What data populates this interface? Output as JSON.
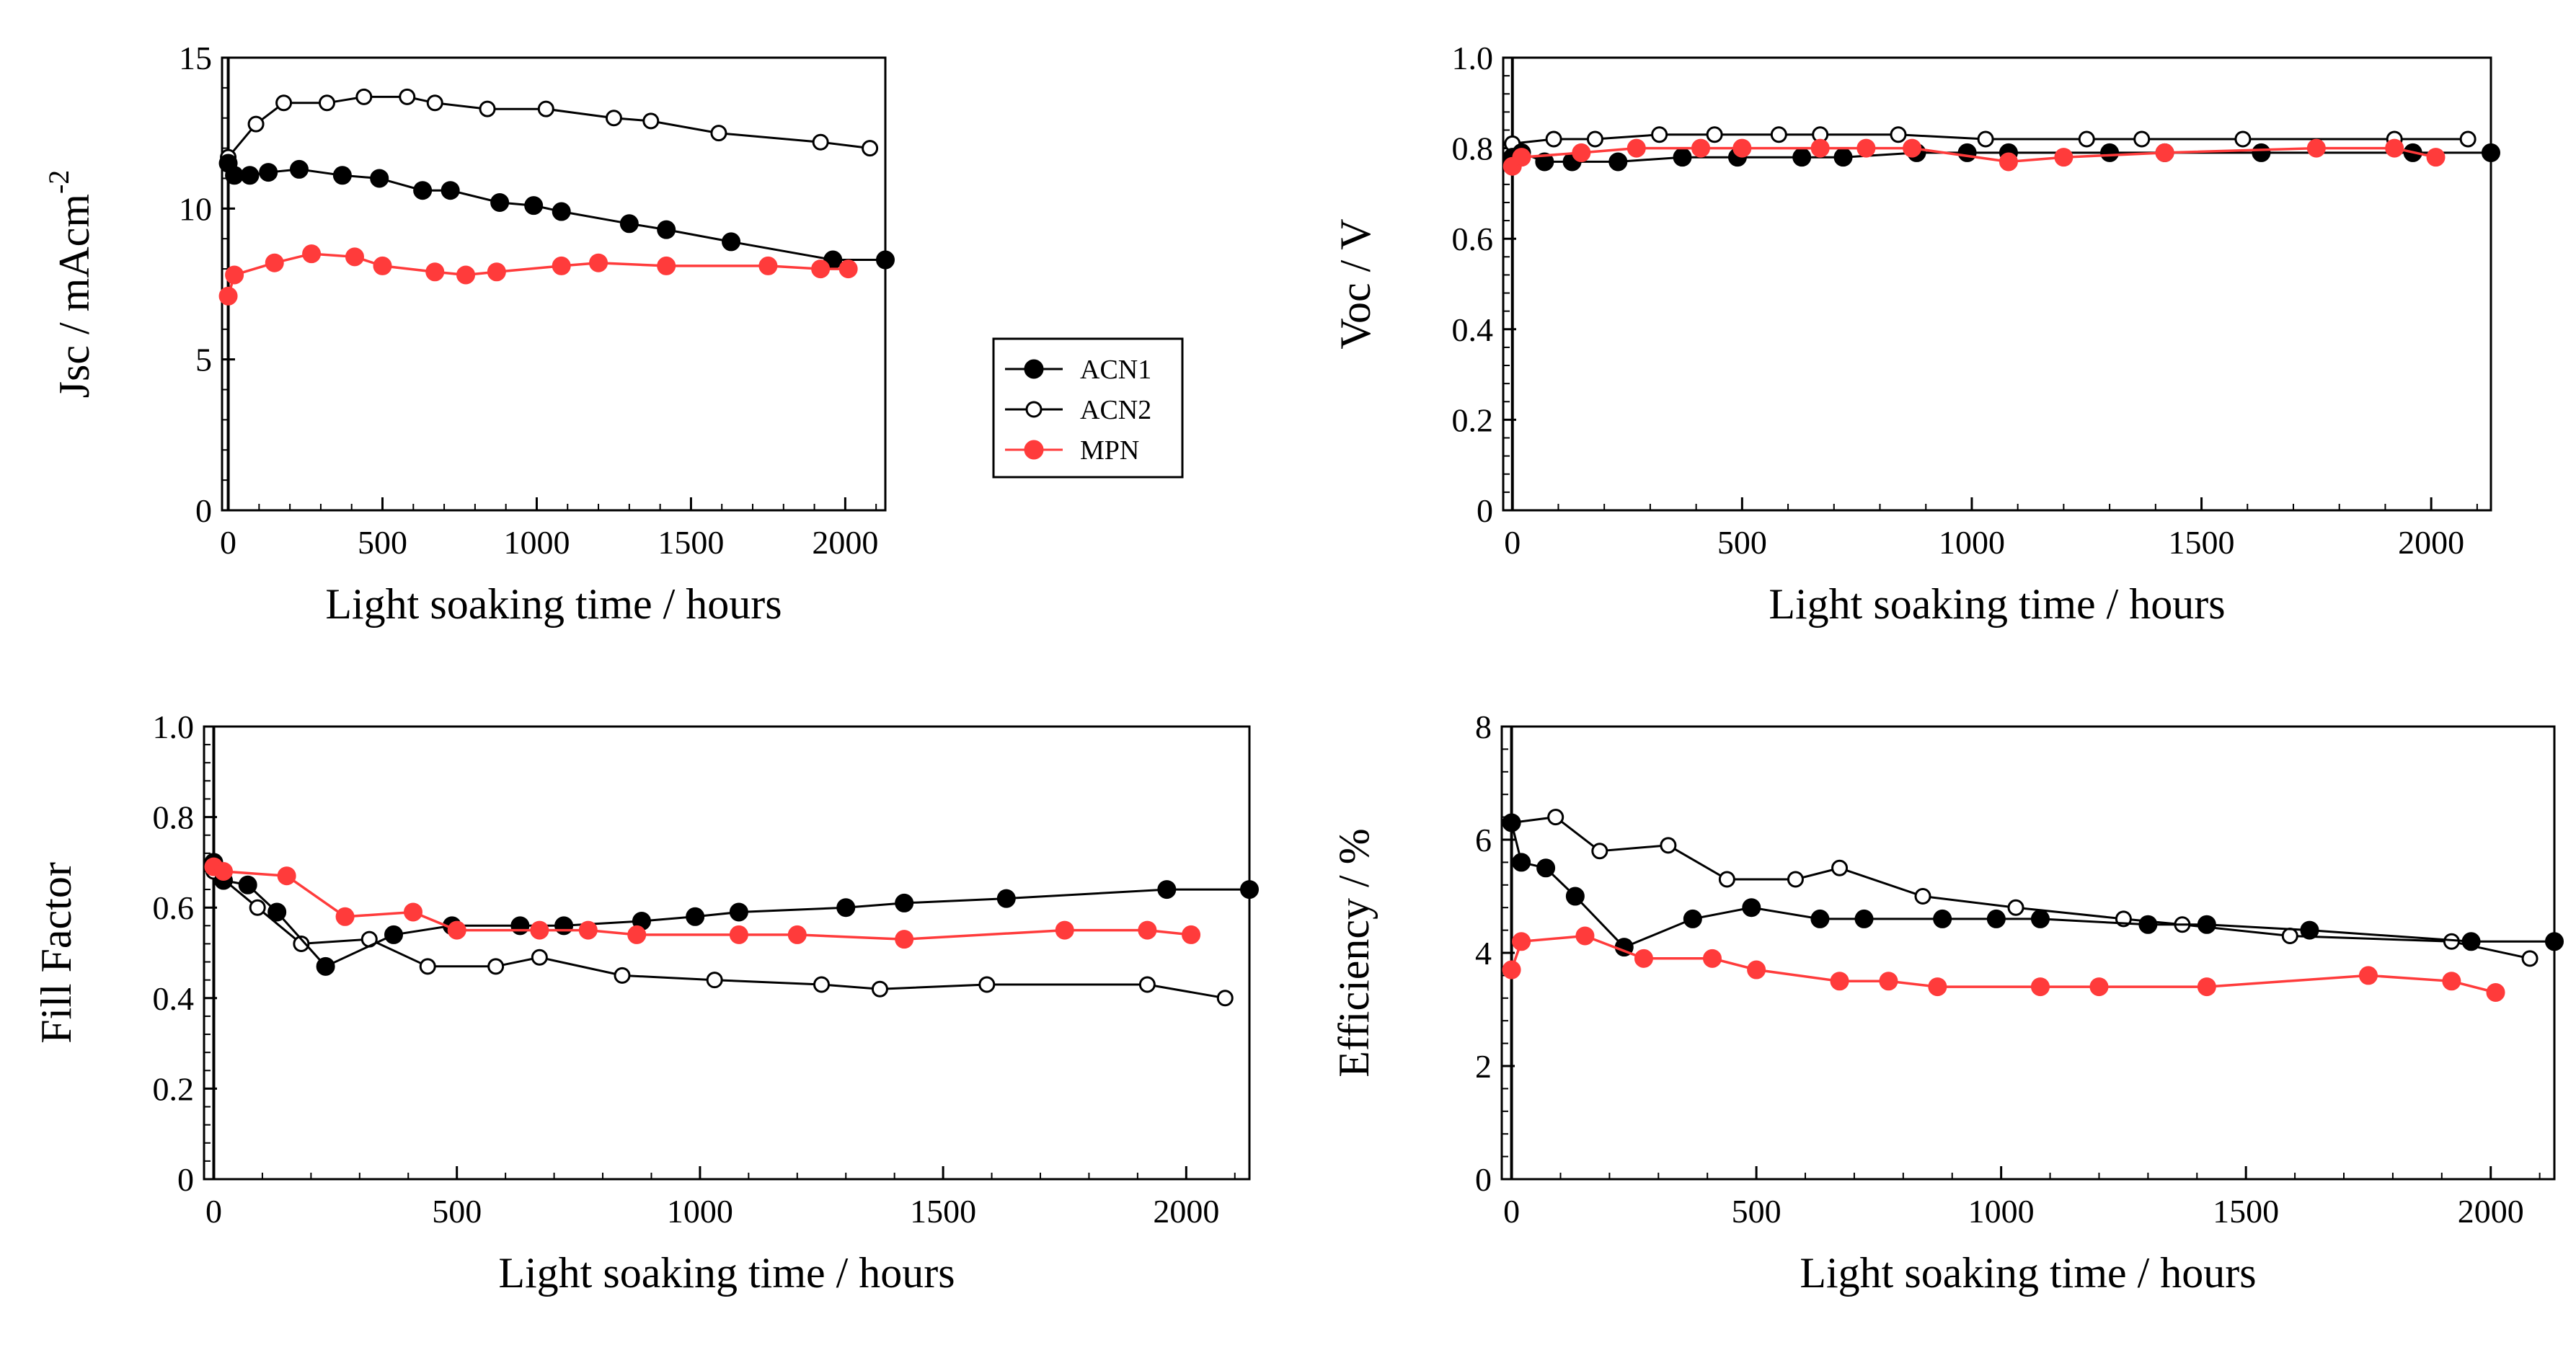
{
  "figure": {
    "legend": {
      "placement": "lower-right of Jsc panel",
      "entries": [
        {
          "name": "ACN1",
          "marker": "filled-circle"
        },
        {
          "name": "ACN2",
          "marker": "open-circle"
        },
        {
          "name": "MPN",
          "marker": "filled-circle-red"
        }
      ]
    },
    "colors": {
      "ACN1": "#000000",
      "ACN2": "#000000",
      "MPN": "#ff3b3b"
    }
  },
  "chart_data": [
    {
      "type": "line",
      "id": "jsc",
      "title": "",
      "xlabel": "Light soaking time / hours",
      "ylabel": "Jsc / mAcm",
      "ylabel_superscript": "-2",
      "xlim": [
        -20,
        2130
      ],
      "ylim": [
        0,
        15
      ],
      "xticks": [
        0,
        500,
        1000,
        1500,
        2000
      ],
      "xtick_labels": [
        "0",
        "500",
        "1000",
        "1500",
        "2000"
      ],
      "yticks": [
        0,
        5,
        10,
        15
      ],
      "ytick_labels": [
        "0",
        "5",
        "10",
        "15"
      ],
      "series": [
        {
          "name": "ACN1",
          "x": [
            0,
            20,
            70,
            130,
            230,
            370,
            490,
            630,
            720,
            880,
            990,
            1080,
            1300,
            1420,
            1630,
            1960,
            2130
          ],
          "y": [
            11.5,
            11.1,
            11.1,
            11.2,
            11.3,
            11.1,
            11.0,
            10.6,
            10.6,
            10.2,
            10.1,
            9.9,
            9.5,
            9.3,
            8.9,
            8.3,
            8.3
          ]
        },
        {
          "name": "ACN2",
          "x": [
            0,
            90,
            180,
            320,
            440,
            580,
            670,
            840,
            1030,
            1250,
            1370,
            1590,
            1920,
            2080
          ],
          "y": [
            11.7,
            12.8,
            13.5,
            13.5,
            13.7,
            13.7,
            13.5,
            13.3,
            13.3,
            13.0,
            12.9,
            12.5,
            12.2,
            12.0
          ]
        },
        {
          "name": "MPN",
          "x": [
            0,
            20,
            150,
            270,
            410,
            500,
            670,
            770,
            870,
            1080,
            1200,
            1420,
            1750,
            1920,
            2010
          ],
          "y": [
            7.1,
            7.8,
            8.2,
            8.5,
            8.4,
            8.1,
            7.9,
            7.8,
            7.9,
            8.1,
            8.2,
            8.1,
            8.1,
            8.0,
            8.0
          ]
        }
      ]
    },
    {
      "type": "line",
      "id": "voc",
      "title": "",
      "xlabel": "Light soaking time / hours",
      "ylabel": "Voc / V",
      "xlim": [
        -20,
        2130
      ],
      "ylim": [
        0,
        1.0
      ],
      "xticks": [
        0,
        500,
        1000,
        1500,
        2000
      ],
      "xtick_labels": [
        "0",
        "500",
        "1000",
        "1500",
        "2000"
      ],
      "yticks": [
        0,
        0.2,
        0.4,
        0.6,
        0.8,
        1.0
      ],
      "ytick_labels": [
        "0",
        "0.2",
        "0.4",
        "0.6",
        "0.8",
        "1.0"
      ],
      "series": [
        {
          "name": "ACN1",
          "x": [
            0,
            20,
            70,
            130,
            230,
            370,
            490,
            630,
            720,
            880,
            990,
            1080,
            1300,
            1420,
            1630,
            1960,
            2130
          ],
          "y": [
            0.78,
            0.79,
            0.77,
            0.77,
            0.77,
            0.78,
            0.78,
            0.78,
            0.78,
            0.79,
            0.79,
            0.79,
            0.79,
            0.79,
            0.79,
            0.79,
            0.79
          ]
        },
        {
          "name": "ACN2",
          "x": [
            0,
            90,
            180,
            320,
            440,
            580,
            670,
            840,
            1030,
            1250,
            1370,
            1590,
            1920,
            2080
          ],
          "y": [
            0.81,
            0.82,
            0.82,
            0.83,
            0.83,
            0.83,
            0.83,
            0.83,
            0.82,
            0.82,
            0.82,
            0.82,
            0.82,
            0.82
          ]
        },
        {
          "name": "MPN",
          "x": [
            0,
            20,
            150,
            270,
            410,
            500,
            670,
            770,
            870,
            1080,
            1200,
            1420,
            1750,
            1920,
            2010
          ],
          "y": [
            0.76,
            0.78,
            0.79,
            0.8,
            0.8,
            0.8,
            0.8,
            0.8,
            0.8,
            0.77,
            0.78,
            0.79,
            0.8,
            0.8,
            0.78
          ]
        }
      ]
    },
    {
      "type": "line",
      "id": "ff",
      "title": "",
      "xlabel": "Light soaking time / hours",
      "ylabel": "Fill Factor",
      "xlim": [
        -20,
        2130
      ],
      "ylim": [
        0,
        1.0
      ],
      "xticks": [
        0,
        500,
        1000,
        1500,
        2000
      ],
      "xtick_labels": [
        "0",
        "500",
        "1000",
        "1500",
        "2000"
      ],
      "yticks": [
        0,
        0.2,
        0.4,
        0.6,
        0.8,
        1.0
      ],
      "ytick_labels": [
        "0",
        "0.2",
        "0.4",
        "0.6",
        "0.8",
        "1.0"
      ],
      "series": [
        {
          "name": "ACN1",
          "x": [
            0,
            20,
            70,
            130,
            230,
            370,
            490,
            630,
            720,
            880,
            990,
            1080,
            1300,
            1420,
            1630,
            1960,
            2130
          ],
          "y": [
            0.7,
            0.66,
            0.65,
            0.59,
            0.47,
            0.54,
            0.56,
            0.56,
            0.56,
            0.57,
            0.58,
            0.59,
            0.6,
            0.61,
            0.62,
            0.64,
            0.64
          ]
        },
        {
          "name": "ACN2",
          "x": [
            0,
            90,
            180,
            320,
            440,
            580,
            670,
            840,
            1030,
            1250,
            1370,
            1590,
            1920,
            2080
          ],
          "y": [
            0.68,
            0.6,
            0.52,
            0.53,
            0.47,
            0.47,
            0.49,
            0.45,
            0.44,
            0.43,
            0.42,
            0.43,
            0.43,
            0.4
          ]
        },
        {
          "name": "MPN",
          "x": [
            0,
            20,
            150,
            270,
            410,
            500,
            670,
            770,
            870,
            1080,
            1200,
            1420,
            1750,
            1920,
            2010
          ],
          "y": [
            0.69,
            0.68,
            0.67,
            0.58,
            0.59,
            0.55,
            0.55,
            0.55,
            0.54,
            0.54,
            0.54,
            0.53,
            0.55,
            0.55,
            0.54
          ]
        }
      ]
    },
    {
      "type": "line",
      "id": "eff",
      "title": "",
      "xlabel": "Light soaking time / hours",
      "ylabel": "Efficiency / %",
      "xlim": [
        -20,
        2130
      ],
      "ylim": [
        0,
        8
      ],
      "xticks": [
        0,
        500,
        1000,
        1500,
        2000
      ],
      "xtick_labels": [
        "0",
        "500",
        "1000",
        "1500",
        "2000"
      ],
      "yticks": [
        0,
        2,
        4,
        6,
        8
      ],
      "ytick_labels": [
        "0",
        "2",
        "4",
        "6",
        "8"
      ],
      "series": [
        {
          "name": "ACN1",
          "x": [
            0,
            20,
            70,
            130,
            230,
            370,
            490,
            630,
            720,
            880,
            990,
            1080,
            1300,
            1420,
            1630,
            1960,
            2130
          ],
          "y": [
            6.3,
            5.6,
            5.5,
            5.0,
            4.1,
            4.6,
            4.8,
            4.6,
            4.6,
            4.6,
            4.6,
            4.6,
            4.5,
            4.5,
            4.4,
            4.2,
            4.2
          ]
        },
        {
          "name": "ACN2",
          "x": [
            0,
            90,
            180,
            320,
            440,
            580,
            670,
            840,
            1030,
            1250,
            1370,
            1590,
            1920,
            2080
          ],
          "y": [
            6.3,
            6.4,
            5.8,
            5.9,
            5.3,
            5.3,
            5.5,
            5.0,
            4.8,
            4.6,
            4.5,
            4.3,
            4.2,
            3.9
          ]
        },
        {
          "name": "MPN",
          "x": [
            0,
            20,
            150,
            270,
            410,
            500,
            670,
            770,
            870,
            1080,
            1200,
            1420,
            1750,
            1920,
            2010
          ],
          "y": [
            3.7,
            4.2,
            4.3,
            3.9,
            3.9,
            3.7,
            3.5,
            3.5,
            3.4,
            3.4,
            3.4,
            3.4,
            3.6,
            3.5,
            3.3
          ]
        }
      ]
    }
  ]
}
